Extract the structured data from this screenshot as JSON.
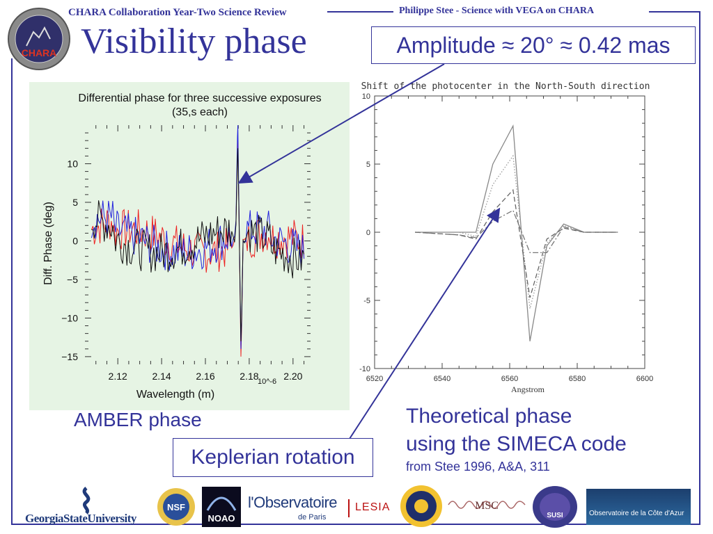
{
  "header": {
    "left_text": "CHARA Collaboration Year-Two Science Review",
    "right_text": "Philippe Stee - Science with VEGA on CHARA"
  },
  "title": "Visibility phase",
  "amplitude_box": "Amplitude ≈ 20° ≈ 0.42 mas",
  "amber_label": "AMBER phase",
  "keplerian_box": "Keplerian rotation",
  "theoretical": {
    "line1": "Theoretical phase",
    "line2": "using the SIMECA code",
    "line3": "from Stee 1996, A&A, 311"
  },
  "logos": {
    "chara": "CHARA",
    "gsu": "GeorgiaStateUniversity",
    "nsf": "NSF",
    "noao": "NOAO",
    "obs_main": "l'Observatoire",
    "obs_sub": "de Paris",
    "lesia": "LESIA",
    "msc": "MSC",
    "susi": "SUSI",
    "oca": "Observatoire de la Côte d'Azur"
  },
  "colors": {
    "accent": "#333399",
    "series_red": "#ee2222",
    "series_blue": "#2222dd",
    "series_black": "#111111"
  },
  "chart_data": [
    {
      "type": "line",
      "title": "Differential phase for three successive exposures",
      "subtitle": "(35,s each)",
      "xlabel": "Wavelength (m)",
      "x_scale_label": "10^-6",
      "ylabel": "Diff. Phase (deg)",
      "xlim": [
        2.105,
        2.208
      ],
      "ylim": [
        -16,
        15
      ],
      "x_ticks": [
        "2.12",
        "2.14",
        "2.16",
        "2.18",
        "2.20"
      ],
      "y_ticks": [
        "10",
        "5",
        "0",
        "−5",
        "−10",
        "−15"
      ],
      "x_tick_values": [
        2.12,
        2.14,
        2.16,
        2.18,
        2.2
      ],
      "y_tick_values": [
        10,
        5,
        0,
        -5,
        -10,
        -15
      ],
      "x_range": [
        2.108,
        2.205
      ],
      "line_center": 2.1755,
      "series": [
        {
          "color": "#ee2222",
          "peak": 13,
          "trough": -15
        },
        {
          "color": "#2222dd",
          "peak": 15,
          "trough": -14
        },
        {
          "color": "#111111",
          "peak": 12,
          "trough": -13
        }
      ]
    },
    {
      "type": "line",
      "title": "Shift of the photocenter in the North-South direction",
      "xlabel": "Angstrom",
      "xlim": [
        6520,
        6600
      ],
      "ylim": [
        -10,
        10
      ],
      "x_ticks": [
        "6520",
        "6540",
        "6560",
        "6580",
        "6600"
      ],
      "y_ticks": [
        "10",
        "5",
        "0",
        "-5",
        "-10"
      ],
      "x_tick_values": [
        6520,
        6540,
        6560,
        6580,
        6600
      ],
      "y_tick_values": [
        10,
        5,
        0,
        -5,
        -10
      ],
      "series": [
        {
          "style": "solid",
          "x": [
            6532,
            6545,
            6550,
            6555,
            6561,
            6566,
            6571,
            6576,
            6582,
            6592
          ],
          "y": [
            0,
            0,
            0,
            5,
            7.8,
            -8,
            -1,
            0.6,
            0,
            0
          ]
        },
        {
          "style": "dotted",
          "x": [
            6532,
            6545,
            6550,
            6555,
            6561,
            6566,
            6571,
            6576,
            6582,
            6592
          ],
          "y": [
            0,
            0,
            -0.3,
            3.5,
            5.6,
            -5.6,
            -0.8,
            0.5,
            0,
            0
          ]
        },
        {
          "style": "dashed",
          "x": [
            6532,
            6545,
            6550,
            6555,
            6561,
            6566,
            6571,
            6576,
            6582,
            6592
          ],
          "y": [
            0,
            -0.2,
            -0.5,
            1.5,
            3.1,
            -4.8,
            -0.5,
            0.3,
            0,
            0
          ]
        },
        {
          "style": "dashdot",
          "x": [
            6532,
            6545,
            6550,
            6555,
            6561,
            6566,
            6571,
            6576,
            6582,
            6592
          ],
          "y": [
            0,
            -0.2,
            -0.4,
            0.8,
            1.6,
            -1.5,
            -1.5,
            0.4,
            0,
            0
          ]
        }
      ]
    }
  ]
}
